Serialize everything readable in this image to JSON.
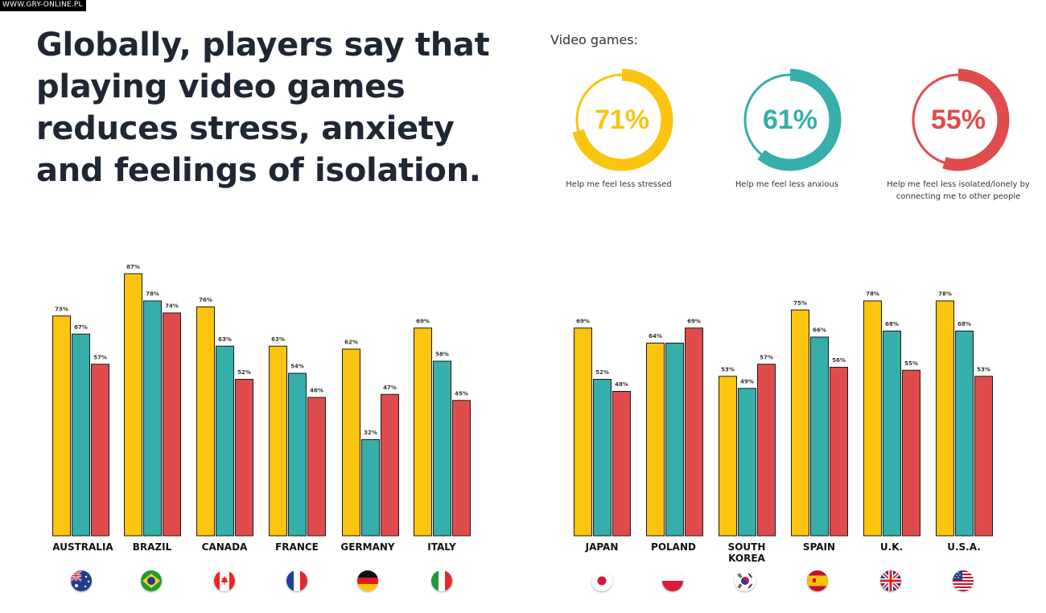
{
  "watermark": "WWW.GRY-ONLINE.PL",
  "headline": "Globally, players say that playing video games reduces stress, anxiety and feelings of isolation.",
  "donuts_title": "Video games:",
  "colors": {
    "stressed": "#fbc40f",
    "anxious": "#36aeaa",
    "isolated": "#e04c4c"
  },
  "donuts": [
    {
      "value": 71,
      "label": "71%",
      "caption": "Help me feel less stressed",
      "color": "#fbc40f"
    },
    {
      "value": 61,
      "label": "61%",
      "caption": "Help me feel less anxious",
      "color": "#36aeaa"
    },
    {
      "value": 55,
      "label": "55%",
      "caption": "Help me feel less isolated/lonely by connecting me to other people",
      "color": "#e04c4c"
    }
  ],
  "chart_data": {
    "type": "bar",
    "categories": [
      "AUSTRALIA",
      "BRAZIL",
      "CANADA",
      "FRANCE",
      "GERMANY",
      "ITALY",
      "JAPAN",
      "POLAND",
      "SOUTH KOREA",
      "SPAIN",
      "U.K.",
      "U.S.A."
    ],
    "flag_icons": [
      "australia-flag-icon",
      "brazil-flag-icon",
      "canada-flag-icon",
      "france-flag-icon",
      "germany-flag-icon",
      "italy-flag-icon",
      "japan-flag-icon",
      "poland-flag-icon",
      "south-korea-flag-icon",
      "spain-flag-icon",
      "uk-flag-icon",
      "usa-flag-icon"
    ],
    "series": [
      {
        "color": "#fbc40f",
        "values": [
          73,
          87,
          76,
          63,
          62,
          69,
          69,
          64,
          53,
          75,
          78,
          78
        ]
      },
      {
        "color": "#36aeaa",
        "values": [
          67,
          78,
          63,
          54,
          32,
          58,
          52,
          64,
          49,
          66,
          68,
          68
        ]
      },
      {
        "color": "#e04c4c",
        "values": [
          57,
          74,
          52,
          46,
          47,
          45,
          48,
          69,
          57,
          56,
          55,
          53
        ]
      }
    ],
    "data_labels": [
      [
        "73%",
        "87%",
        "76%",
        "63%",
        "62%",
        "69%",
        "69%",
        "64%",
        "53%",
        "75%",
        "78%",
        "78%"
      ],
      [
        "67%",
        "78%",
        "63%",
        "54%",
        "32%",
        "58%",
        "52%",
        "",
        "49%",
        "66%",
        "68%",
        "68%"
      ],
      [
        "57%",
        "74%",
        "52%",
        "46%",
        "47%",
        "45%",
        "48%",
        "69%",
        "57%",
        "56%",
        "55%",
        "53%"
      ]
    ],
    "unit": "%",
    "grid": false
  }
}
